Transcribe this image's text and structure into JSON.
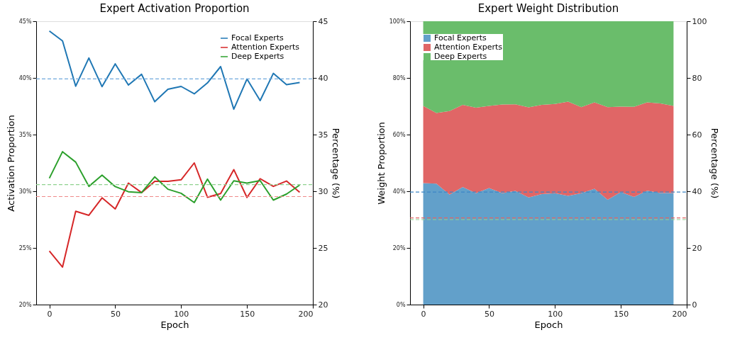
{
  "chart_data": [
    {
      "type": "line",
      "title": "Expert Activation Proportion",
      "xlabel": "Epoch",
      "ylabel": "Activation Proportion",
      "y2label": "Percentage (%)",
      "x": [
        0,
        10,
        20,
        30,
        40,
        50,
        60,
        70,
        80,
        90,
        100,
        110,
        120,
        130,
        140,
        150,
        160,
        170,
        180,
        190
      ],
      "series": [
        {
          "name": "Focal Experts",
          "color": "#1f77b4",
          "values": [
            44.14,
            43.27,
            39.27,
            41.76,
            39.23,
            41.24,
            39.37,
            40.32,
            37.9,
            39.0,
            39.25,
            38.6,
            39.56,
            41.0,
            37.24,
            39.9,
            38.0,
            40.4,
            39.4,
            39.6
          ]
        },
        {
          "name": "Attention Experts",
          "color": "#d62728",
          "values": [
            24.72,
            23.31,
            28.23,
            27.88,
            29.42,
            28.44,
            30.72,
            29.88,
            30.88,
            30.88,
            31.01,
            32.5,
            29.47,
            29.8,
            31.91,
            29.45,
            31.11,
            30.43,
            30.9,
            29.9
          ]
        },
        {
          "name": "Deep Experts",
          "color": "#2ca02c",
          "values": [
            31.15,
            33.49,
            32.57,
            30.43,
            31.42,
            30.41,
            29.96,
            29.88,
            31.27,
            30.18,
            29.82,
            29.0,
            31.07,
            29.22,
            30.92,
            30.72,
            30.94,
            29.22,
            29.75,
            30.55
          ]
        }
      ],
      "xlim": [
        -10,
        200
      ],
      "xticks": [
        0,
        50,
        100,
        150,
        200
      ],
      "ylim": [
        20,
        45
      ],
      "yticks": [
        {
          "value": 20,
          "label": "20%"
        },
        {
          "value": 25,
          "label": "25%"
        },
        {
          "value": 30,
          "label": "30%"
        },
        {
          "value": 35,
          "label": "35%"
        },
        {
          "value": 40,
          "label": "40%"
        },
        {
          "value": 45,
          "label": "45%"
        }
      ],
      "y2lim": [
        20,
        45
      ],
      "y2ticks": [
        20,
        25,
        30,
        35,
        40,
        45
      ],
      "ref_lines": [
        {
          "axis": "y2",
          "value": 39.91,
          "color": "#6fa8dc",
          "line_style": "dashed"
        },
        {
          "axis": "y2",
          "value": 29.53,
          "color": "#ef8a8a",
          "line_style": "dashed"
        },
        {
          "axis": "y2",
          "value": 30.58,
          "color": "#8fd18f",
          "line_style": "dashed"
        }
      ],
      "legend": "top right",
      "line_style": "solid",
      "marker": "none"
    },
    {
      "type": "area",
      "stacked": true,
      "title": "Expert Weight Distribution",
      "xlabel": "Epoch",
      "ylabel": "Weight Proportion",
      "y2label": "Percentage (%)",
      "x": [
        0,
        10,
        20,
        30,
        40,
        50,
        60,
        70,
        80,
        90,
        100,
        110,
        120,
        130,
        140,
        150,
        160,
        170,
        180,
        190
      ],
      "series": [
        {
          "name": "Focal Experts",
          "color": "#62a0ca",
          "values": [
            42.9,
            42.7,
            38.8,
            41.5,
            39.3,
            41.1,
            39.3,
            40.1,
            37.8,
            39.0,
            39.3,
            38.4,
            39.3,
            40.9,
            37.0,
            39.7,
            38.0,
            40.2,
            39.4,
            39.4
          ]
        },
        {
          "name": "Attention Experts",
          "color": "#e06666",
          "values": [
            27.2,
            24.9,
            29.5,
            29.0,
            30.2,
            29.0,
            31.3,
            30.6,
            31.8,
            31.5,
            31.5,
            33.2,
            30.4,
            30.5,
            32.7,
            30.2,
            31.8,
            31.2,
            31.6,
            30.7
          ]
        },
        {
          "name": "Deep Experts",
          "color": "#6abd6b",
          "values": [
            29.9,
            32.4,
            31.7,
            29.5,
            30.5,
            29.9,
            29.4,
            29.3,
            30.4,
            29.5,
            29.2,
            28.4,
            30.3,
            28.6,
            30.3,
            30.1,
            30.2,
            28.6,
            29.0,
            29.9
          ]
        }
      ],
      "xlim": [
        -10,
        200
      ],
      "xticks": [
        0,
        50,
        100,
        150,
        200
      ],
      "ylim": [
        0,
        100
      ],
      "yticks": [
        {
          "value": 0,
          "label": "0%"
        },
        {
          "value": 20,
          "label": "20%"
        },
        {
          "value": 40,
          "label": "40%"
        },
        {
          "value": 60,
          "label": "60%"
        },
        {
          "value": 80,
          "label": "80%"
        },
        {
          "value": 100,
          "label": "100%"
        }
      ],
      "y2lim": [
        0,
        100
      ],
      "y2ticks": [
        0,
        20,
        40,
        60,
        80,
        100
      ],
      "ref_lines": [
        {
          "axis": "y2",
          "value": 39.7,
          "color": "#3d85c6",
          "line_style": "dashed"
        },
        {
          "axis": "y2",
          "value": 30.6,
          "color": "#e06666",
          "line_style": "dashed"
        },
        {
          "axis": "y2",
          "value": 30.0,
          "color": "#8fd18f",
          "line_style": "dashed"
        }
      ],
      "legend": "top left"
    }
  ]
}
